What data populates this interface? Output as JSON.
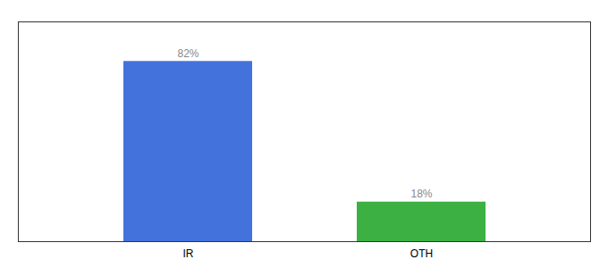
{
  "chart_data": {
    "type": "bar",
    "categories": [
      "IR",
      "OTH"
    ],
    "values": [
      82,
      18
    ],
    "value_labels": [
      "82%",
      "18%"
    ],
    "colors": [
      "#4472DD",
      "#3CB043"
    ],
    "ylim": [
      0,
      100
    ],
    "data_labels": true,
    "tick_labels": "x"
  }
}
